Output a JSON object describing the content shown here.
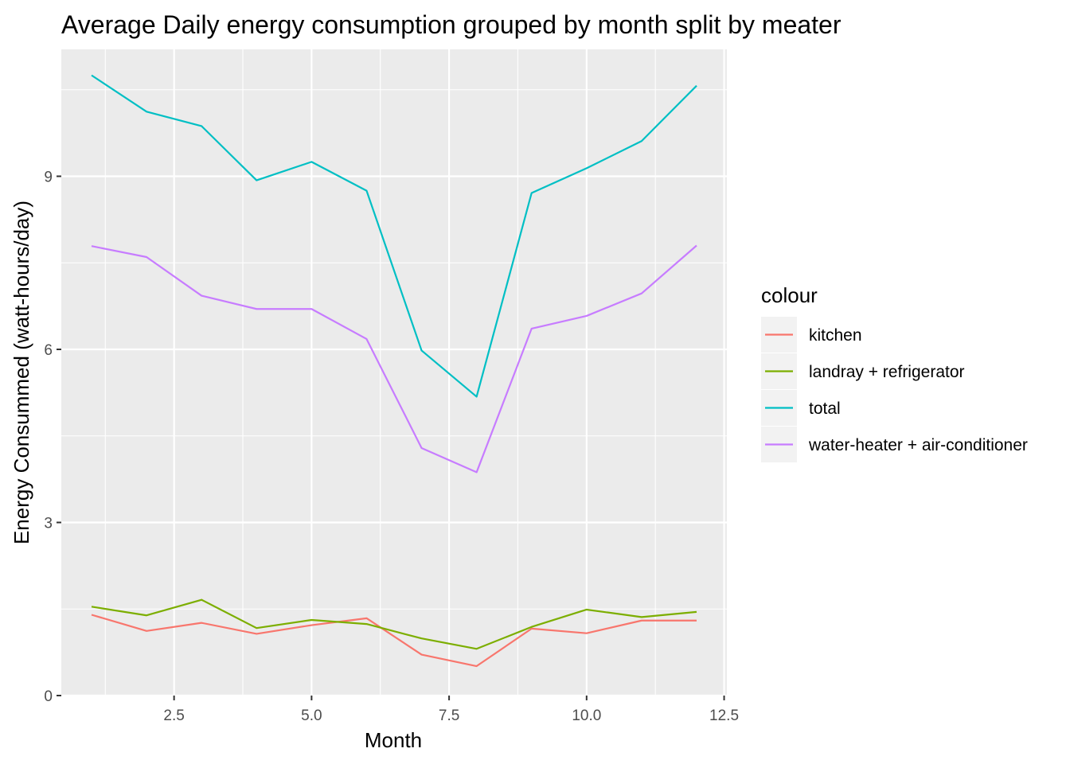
{
  "chart_data": {
    "type": "line",
    "title": "Average Daily energy consumption grouped by month split by meater",
    "xlabel": "Month",
    "ylabel": "Energy Consummed (watt-hours/day)",
    "xlim": [
      0.45,
      12.55
    ],
    "ylim": [
      0,
      11.2
    ],
    "x_ticks": [
      2.5,
      5.0,
      7.5,
      10.0,
      12.5
    ],
    "x_tick_labels": [
      "2.5",
      "5.0",
      "7.5",
      "10.0",
      "12.5"
    ],
    "y_ticks": [
      0,
      3,
      6,
      9
    ],
    "y_tick_labels": [
      "0",
      "3",
      "6",
      "9"
    ],
    "grid": true,
    "legend": {
      "title": "colour",
      "position": "right"
    },
    "x": [
      1,
      2,
      3,
      4,
      5,
      6,
      7,
      8,
      9,
      10,
      11,
      12
    ],
    "series": [
      {
        "name": "kitchen",
        "color": "#F8766D",
        "values": [
          1.4,
          1.12,
          1.26,
          1.07,
          1.22,
          1.34,
          0.71,
          0.51,
          1.16,
          1.08,
          1.3,
          1.3
        ]
      },
      {
        "name": "landray + refrigerator",
        "color": "#7CAE00",
        "values": [
          1.54,
          1.39,
          1.66,
          1.17,
          1.31,
          1.24,
          0.99,
          0.81,
          1.19,
          1.49,
          1.36,
          1.45
        ]
      },
      {
        "name": "total",
        "color": "#00BFC4",
        "values": [
          10.75,
          10.12,
          9.87,
          8.93,
          9.25,
          8.75,
          5.98,
          5.18,
          8.71,
          9.14,
          9.61,
          10.57
        ]
      },
      {
        "name": "water-heater + air-conditioner",
        "color": "#C77CFF",
        "values": [
          7.79,
          7.6,
          6.93,
          6.7,
          6.7,
          6.18,
          4.29,
          3.87,
          6.36,
          6.58,
          6.97,
          7.8
        ]
      }
    ]
  }
}
